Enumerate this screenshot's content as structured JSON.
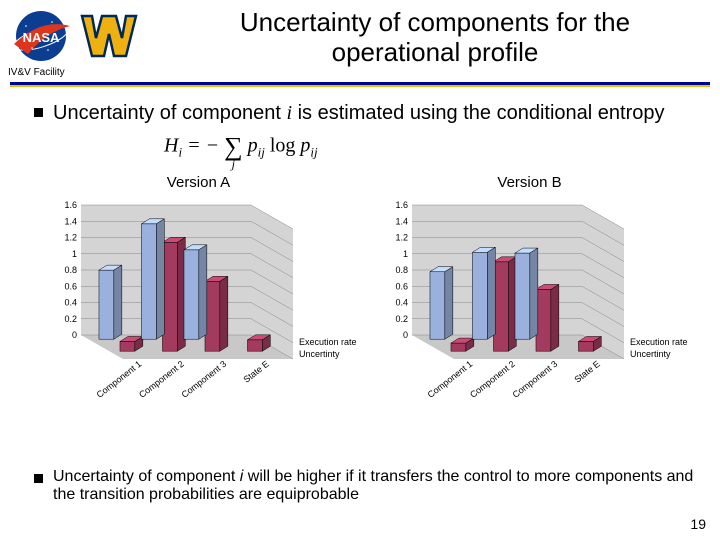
{
  "header": {
    "ivv_facility": "IV&V Facility",
    "title": "Uncertainty of components for the operational profile"
  },
  "bullet1_prefix": "Uncertainty of component ",
  "bullet1_var": "i",
  "bullet1_suffix": " is estimated using the conditional entropy",
  "formula": {
    "lhs_H": "H",
    "lhs_sub": "i",
    "eq": " = − ",
    "sigma_top": "",
    "sigma": "∑",
    "sigma_bottom": "j",
    "term_p": "p",
    "term_sub": "ij",
    "log": " log ",
    "term2_p": "p",
    "term2_sub": "ij"
  },
  "charts": {
    "ylim": [
      0,
      1.6
    ],
    "yticks": [
      0,
      0.2,
      0.4,
      0.6,
      0.8,
      1,
      1.2,
      1.4,
      1.6
    ],
    "categories": [
      "Component 1",
      "Component 2",
      "Component 3",
      "State E"
    ],
    "series": [
      "Uncertinty",
      "Execution rate"
    ],
    "series_colors": [
      "#9ab1dd",
      "#a33b5e"
    ],
    "wall_color": "#d4d4d4",
    "floor_color": "#c8c8c8",
    "grid_color": "#888888",
    "versionA": {
      "label": "Version A",
      "values": [
        [
          0.85,
          0.12
        ],
        [
          1.42,
          1.34
        ],
        [
          1.1,
          0.86
        ],
        [
          0.0,
          0.14
        ]
      ]
    },
    "versionB": {
      "label": "Version B",
      "values": [
        [
          0.83,
          0.1
        ],
        [
          1.07,
          1.1
        ],
        [
          1.06,
          0.76
        ],
        [
          0.0,
          0.12
        ]
      ]
    }
  },
  "bullet2_prefix": "Uncertainty of component ",
  "bullet2_var": "i",
  "bullet2_suffix": " will be higher if it transfers the control to more components and the transition probabilities are equiprobable",
  "page_number": "19",
  "colors": {
    "rule_main": "#000099",
    "rule_accent": "#e6c200"
  }
}
